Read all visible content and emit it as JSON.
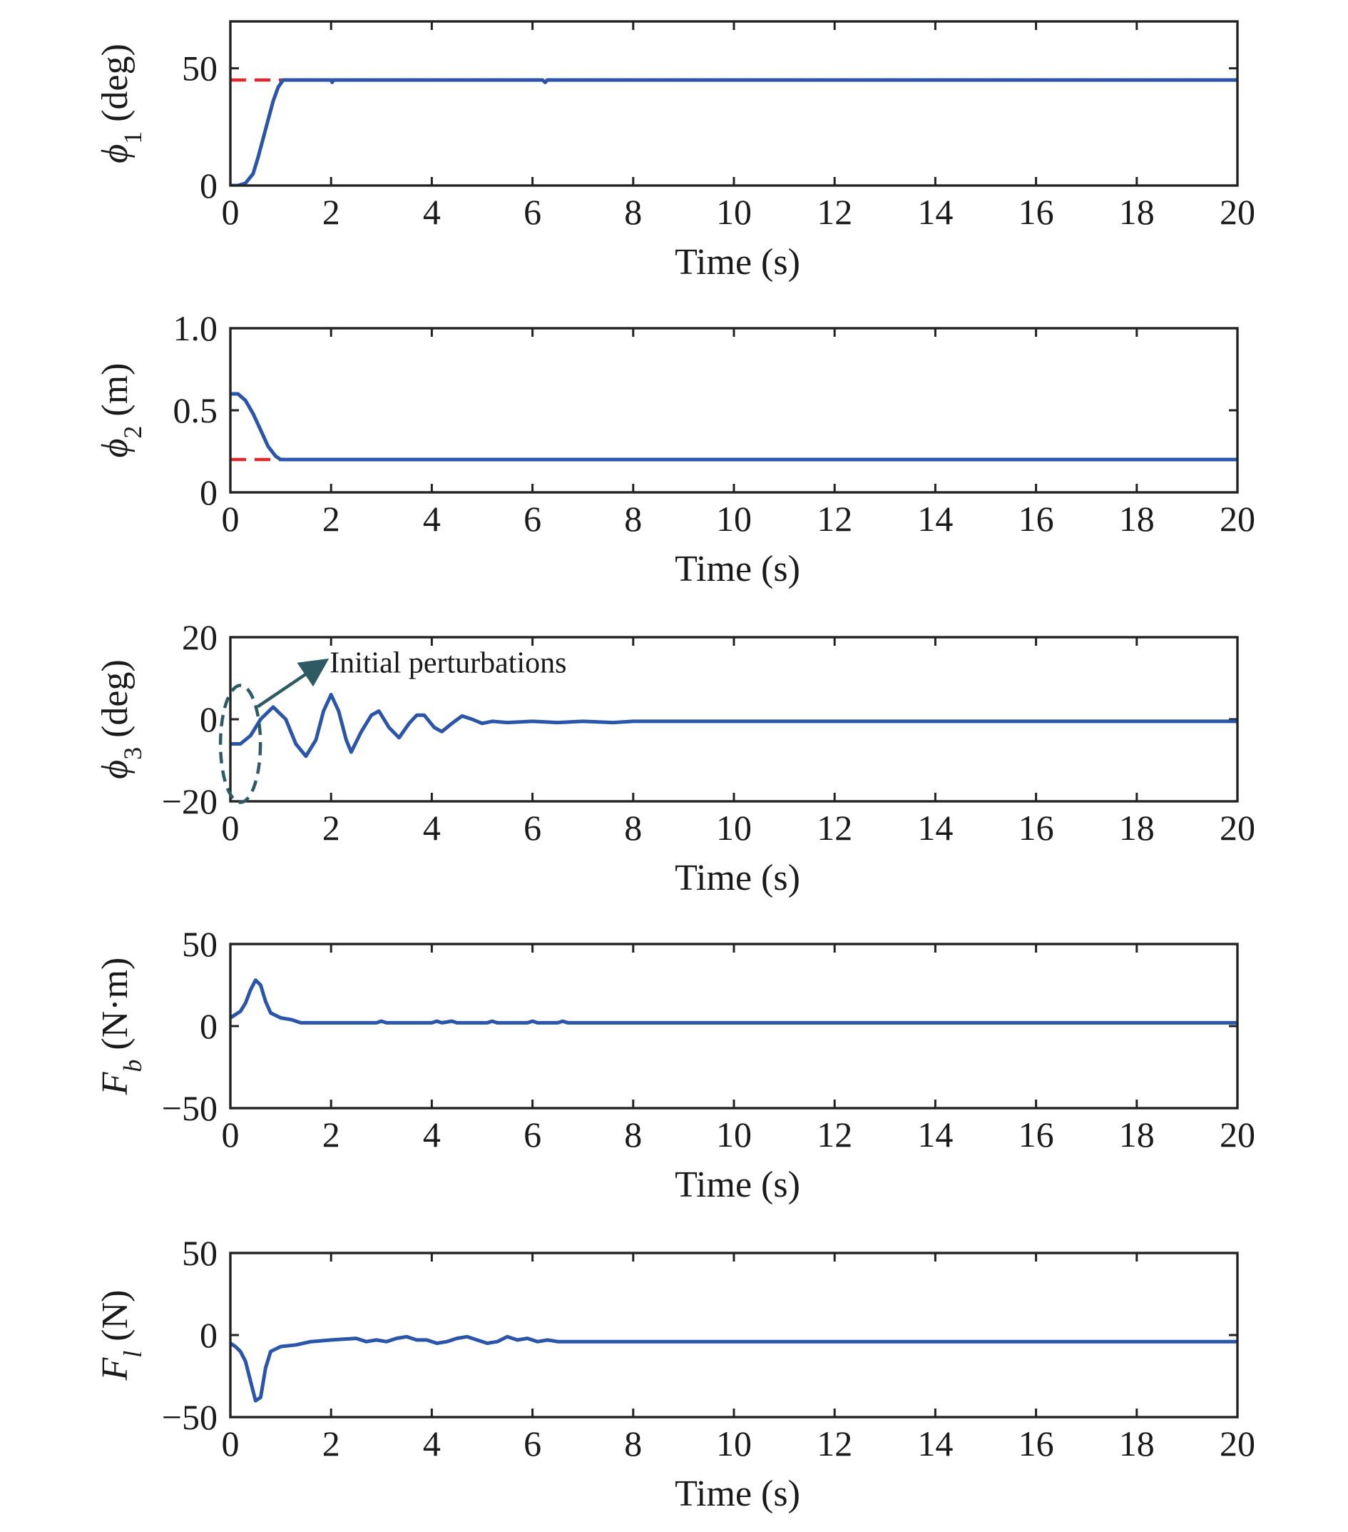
{
  "chart_data": [
    {
      "type": "line",
      "xlabel": "Time (s)",
      "ylabel": {
        "base": "ϕ",
        "sub": "1",
        "unit": " (deg)"
      },
      "xlim": [
        0,
        20
      ],
      "ylim": [
        0,
        70
      ],
      "xticks": [
        0,
        2,
        4,
        6,
        8,
        10,
        12,
        14,
        16,
        18,
        20
      ],
      "xtick_labels": [
        "0",
        "2",
        "4",
        "6",
        "8",
        "10",
        "12",
        "14",
        "16",
        "18",
        "20"
      ],
      "yticks": [
        0,
        50
      ],
      "ytick_labels": [
        "0",
        "50"
      ],
      "reference": {
        "y": 45,
        "color": "#e0272b",
        "style": "dashed",
        "x": [
          0,
          20
        ]
      },
      "series": [
        {
          "color": "#2b55a8",
          "points": [
            [
              0,
              0
            ],
            [
              0.15,
              0
            ],
            [
              0.3,
              1
            ],
            [
              0.45,
              5
            ],
            [
              0.55,
              12
            ],
            [
              0.65,
              20
            ],
            [
              0.75,
              28
            ],
            [
              0.85,
              36
            ],
            [
              0.95,
              42
            ],
            [
              1.05,
              45
            ],
            [
              2,
              45
            ],
            [
              2.02,
              44
            ],
            [
              2.05,
              45
            ],
            [
              6.2,
              45
            ],
            [
              6.25,
              44
            ],
            [
              6.3,
              45
            ],
            [
              20,
              45
            ]
          ]
        }
      ]
    },
    {
      "type": "line",
      "xlabel": "Time (s)",
      "ylabel": {
        "base": "ϕ",
        "sub": "2",
        "unit": " (m)"
      },
      "xlim": [
        0,
        20
      ],
      "ylim": [
        0,
        1.0
      ],
      "xticks": [
        0,
        2,
        4,
        6,
        8,
        10,
        12,
        14,
        16,
        18,
        20
      ],
      "xtick_labels": [
        "0",
        "2",
        "4",
        "6",
        "8",
        "10",
        "12",
        "14",
        "16",
        "18",
        "20"
      ],
      "yticks": [
        0,
        0.5,
        1.0
      ],
      "ytick_labels": [
        "0",
        "0.5",
        "1.0"
      ],
      "reference": {
        "y": 0.2,
        "color": "#e0272b",
        "style": "dashed",
        "x": [
          0,
          20
        ]
      },
      "series": [
        {
          "color": "#2b55a8",
          "points": [
            [
              0,
              0.6
            ],
            [
              0.15,
              0.6
            ],
            [
              0.3,
              0.56
            ],
            [
              0.45,
              0.48
            ],
            [
              0.6,
              0.38
            ],
            [
              0.75,
              0.28
            ],
            [
              0.9,
              0.22
            ],
            [
              1.0,
              0.2
            ],
            [
              20,
              0.2
            ]
          ]
        }
      ]
    },
    {
      "type": "line",
      "xlabel": "Time (s)",
      "ylabel": {
        "base": "ϕ",
        "sub": "3",
        "unit": " (deg)"
      },
      "xlim": [
        0,
        20
      ],
      "ylim": [
        -20,
        20
      ],
      "xticks": [
        0,
        2,
        4,
        6,
        8,
        10,
        12,
        14,
        16,
        18,
        20
      ],
      "xtick_labels": [
        "0",
        "2",
        "4",
        "6",
        "8",
        "10",
        "12",
        "14",
        "16",
        "18",
        "20"
      ],
      "yticks": [
        -20,
        0,
        20
      ],
      "ytick_labels": [
        "−20",
        "0",
        "20"
      ],
      "annotation": {
        "text": "Initial perturbations",
        "ellipse_center": [
          0.2,
          -6
        ],
        "arrow_to": [
          1.8,
          13.5
        ],
        "color": "#2e5a63"
      },
      "series": [
        {
          "color": "#2b55a8",
          "points": [
            [
              0,
              -6
            ],
            [
              0.2,
              -6
            ],
            [
              0.4,
              -4
            ],
            [
              0.6,
              0
            ],
            [
              0.85,
              3
            ],
            [
              1.1,
              0
            ],
            [
              1.3,
              -6
            ],
            [
              1.5,
              -9
            ],
            [
              1.7,
              -5
            ],
            [
              1.85,
              2
            ],
            [
              2.0,
              6
            ],
            [
              2.15,
              2
            ],
            [
              2.3,
              -5
            ],
            [
              2.4,
              -8
            ],
            [
              2.6,
              -3
            ],
            [
              2.8,
              1
            ],
            [
              2.95,
              2
            ],
            [
              3.15,
              -2
            ],
            [
              3.35,
              -4.5
            ],
            [
              3.55,
              -1
            ],
            [
              3.7,
              1
            ],
            [
              3.85,
              1
            ],
            [
              4.05,
              -2
            ],
            [
              4.2,
              -3
            ],
            [
              4.4,
              -1
            ],
            [
              4.6,
              0.8
            ],
            [
              4.8,
              0
            ],
            [
              5.0,
              -1
            ],
            [
              5.2,
              -0.5
            ],
            [
              5.5,
              -0.8
            ],
            [
              6.0,
              -0.5
            ],
            [
              6.5,
              -0.8
            ],
            [
              7.0,
              -0.5
            ],
            [
              7.6,
              -0.8
            ],
            [
              8.0,
              -0.5
            ],
            [
              20,
              -0.5
            ]
          ]
        }
      ]
    },
    {
      "type": "line",
      "xlabel": "Time (s)",
      "ylabel": {
        "base": "F",
        "sub": "b",
        "unit": " (N·m)"
      },
      "xlim": [
        0,
        20
      ],
      "ylim": [
        -50,
        50
      ],
      "xticks": [
        0,
        2,
        4,
        6,
        8,
        10,
        12,
        14,
        16,
        18,
        20
      ],
      "xtick_labels": [
        "0",
        "2",
        "4",
        "6",
        "8",
        "10",
        "12",
        "14",
        "16",
        "18",
        "20"
      ],
      "yticks": [
        -50,
        0,
        50
      ],
      "ytick_labels": [
        "−50",
        "0",
        "50"
      ],
      "series": [
        {
          "color": "#2b55a8",
          "points": [
            [
              0,
              5
            ],
            [
              0.1,
              7
            ],
            [
              0.2,
              9
            ],
            [
              0.3,
              14
            ],
            [
              0.4,
              22
            ],
            [
              0.5,
              28
            ],
            [
              0.6,
              25
            ],
            [
              0.7,
              15
            ],
            [
              0.8,
              8
            ],
            [
              1.0,
              5
            ],
            [
              1.2,
              4
            ],
            [
              1.4,
              2
            ],
            [
              1.6,
              2
            ],
            [
              2.9,
              2
            ],
            [
              3.0,
              3
            ],
            [
              3.1,
              2
            ],
            [
              4.0,
              2
            ],
            [
              4.1,
              3
            ],
            [
              4.2,
              2
            ],
            [
              4.4,
              3
            ],
            [
              4.5,
              2
            ],
            [
              5.1,
              2
            ],
            [
              5.2,
              3
            ],
            [
              5.3,
              2
            ],
            [
              5.9,
              2
            ],
            [
              6.0,
              3
            ],
            [
              6.1,
              2
            ],
            [
              6.5,
              2
            ],
            [
              6.6,
              3
            ],
            [
              6.7,
              2
            ],
            [
              20,
              2
            ]
          ]
        }
      ]
    },
    {
      "type": "line",
      "xlabel": "Time (s)",
      "ylabel": {
        "base": "F",
        "sub": "l",
        "unit": " (N)"
      },
      "xlim": [
        0,
        20
      ],
      "ylim": [
        -50,
        50
      ],
      "xticks": [
        0,
        2,
        4,
        6,
        8,
        10,
        12,
        14,
        16,
        18,
        20
      ],
      "xtick_labels": [
        "0",
        "2",
        "4",
        "6",
        "8",
        "10",
        "12",
        "14",
        "16",
        "18",
        "20"
      ],
      "yticks": [
        -50,
        0,
        50
      ],
      "ytick_labels": [
        "−50",
        "0",
        "50"
      ],
      "series": [
        {
          "color": "#2b55a8",
          "points": [
            [
              0,
              -5
            ],
            [
              0.1,
              -7
            ],
            [
              0.2,
              -10
            ],
            [
              0.3,
              -16
            ],
            [
              0.4,
              -28
            ],
            [
              0.5,
              -40
            ],
            [
              0.6,
              -38
            ],
            [
              0.7,
              -20
            ],
            [
              0.8,
              -10
            ],
            [
              1.0,
              -7
            ],
            [
              1.3,
              -6
            ],
            [
              1.6,
              -4
            ],
            [
              2.0,
              -3
            ],
            [
              2.5,
              -2
            ],
            [
              2.7,
              -4
            ],
            [
              2.9,
              -3
            ],
            [
              3.1,
              -4
            ],
            [
              3.3,
              -2
            ],
            [
              3.5,
              -1
            ],
            [
              3.7,
              -3
            ],
            [
              3.9,
              -3
            ],
            [
              4.1,
              -5
            ],
            [
              4.3,
              -4
            ],
            [
              4.5,
              -2
            ],
            [
              4.7,
              -1
            ],
            [
              4.9,
              -3
            ],
            [
              5.1,
              -5
            ],
            [
              5.3,
              -4
            ],
            [
              5.5,
              -1
            ],
            [
              5.7,
              -3
            ],
            [
              5.9,
              -2
            ],
            [
              6.1,
              -4
            ],
            [
              6.3,
              -3
            ],
            [
              6.5,
              -4
            ],
            [
              20,
              -4
            ]
          ]
        }
      ]
    }
  ]
}
